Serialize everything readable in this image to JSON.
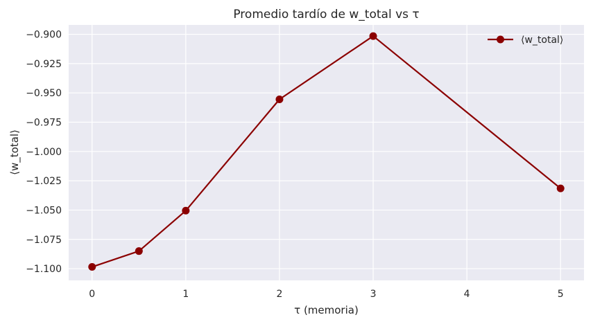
{
  "chart_data": {
    "type": "line",
    "title": "Promedio tardío de w_total vs τ",
    "xlabel": "τ (memoria)",
    "ylabel": "⟨w_total⟩",
    "xlim": [
      -0.25,
      5.25
    ],
    "ylim": [
      -1.11,
      -0.892
    ],
    "x_ticks": [
      0,
      1,
      2,
      3,
      4,
      5
    ],
    "x_tick_labels": [
      "0",
      "1",
      "2",
      "3",
      "4",
      "5"
    ],
    "y_ticks": [
      -0.9,
      -0.925,
      -0.95,
      -0.975,
      -1.0,
      -1.025,
      -1.05,
      -1.075,
      -1.1
    ],
    "y_tick_labels": [
      "−0.900",
      "−0.925",
      "−0.950",
      "−0.975",
      "−1.000",
      "−1.025",
      "−1.050",
      "−1.075",
      "−1.100"
    ],
    "grid": true,
    "legend_position": "top-right",
    "series": [
      {
        "name": "⟨w_total⟩",
        "color": "#8b0000",
        "marker": "circle",
        "x": [
          0,
          0.5,
          1,
          2,
          3,
          5
        ],
        "y": [
          -1.0985,
          -1.085,
          -1.0505,
          -0.9555,
          -0.9015,
          -1.0315
        ]
      }
    ]
  }
}
